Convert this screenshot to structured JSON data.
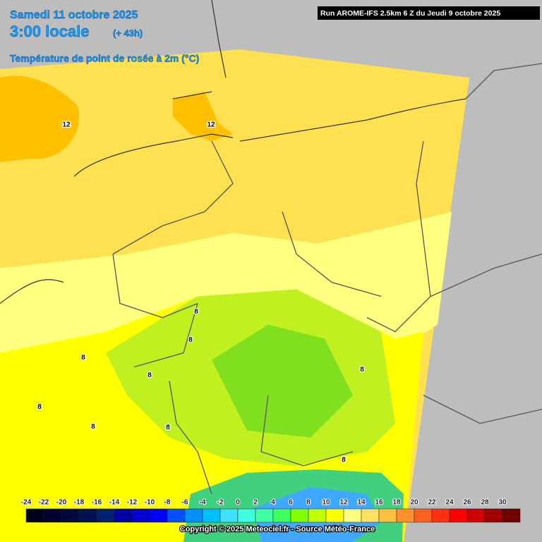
{
  "header": {
    "date": "Samedi 11 octobre 2025",
    "time": "3:00 locale",
    "lead": "(+ 43h)",
    "parameter": "Température de point de rosée à 2m (°C)"
  },
  "run": "Run AROME-IFS 2.5km 6 Z du Jeudi 9 octobre 2025",
  "legend": {
    "ticks": [
      -24,
      -22,
      -20,
      -18,
      -16,
      -14,
      -12,
      -10,
      -8,
      -6,
      -4,
      -2,
      0,
      2,
      4,
      6,
      8,
      10,
      12,
      14,
      16,
      18,
      20,
      22,
      24,
      26,
      28,
      30
    ],
    "colors": [
      "#000018",
      "#000030",
      "#00083c",
      "#001050",
      "#002070",
      "#0000a0",
      "#0000d0",
      "#0000ff",
      "#0050ff",
      "#0090ff",
      "#00c0ff",
      "#40e0ff",
      "#40ffe0",
      "#40ffa0",
      "#40ff60",
      "#80ff00",
      "#c0ff00",
      "#ffff00",
      "#ffff80",
      "#ffe060",
      "#ffc040",
      "#ff9030",
      "#ff6020",
      "#ff3010",
      "#ff0000",
      "#d00000",
      "#a00000",
      "#700000"
    ]
  },
  "contour_labels": [
    "12",
    "12",
    "8",
    "8",
    "8",
    "8",
    "8",
    "8",
    "8",
    "8",
    "8"
  ],
  "copyright": "Copyright © 2025 Meteociel.fr - Source Météo-France"
}
